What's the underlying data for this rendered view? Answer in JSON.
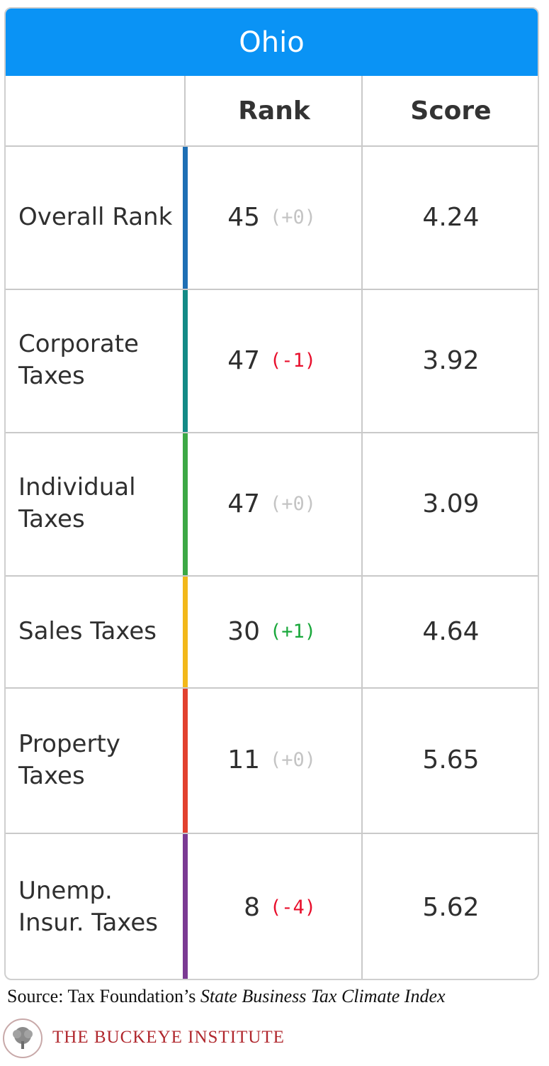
{
  "title": "Ohio",
  "columns": {
    "rank": "Rank",
    "score": "Score"
  },
  "colors": {
    "header": "#0a93f5",
    "neutral_change": "#c4c4c4",
    "negative_change": "#e8102d",
    "positive_change": "#1aa83c"
  },
  "rows": [
    {
      "label": "Overall Rank",
      "rank": "45",
      "change": "(+0)",
      "change_kind": "neutral",
      "score": "4.24",
      "bar_color": "#1e6fb5"
    },
    {
      "label": "Corporate Taxes",
      "rank": "47",
      "change": "(-1)",
      "change_kind": "negative",
      "score": "3.92",
      "bar_color": "#138a86"
    },
    {
      "label": "Individual Taxes",
      "rank": "47",
      "change": "(+0)",
      "change_kind": "neutral",
      "score": "3.09",
      "bar_color": "#3ca845"
    },
    {
      "label": "Sales Taxes",
      "rank": "30",
      "change": "(+1)",
      "change_kind": "positive",
      "score": "4.64",
      "bar_color": "#f2b81a"
    },
    {
      "label": "Property Taxes",
      "rank": "11",
      "change": "(+0)",
      "change_kind": "neutral",
      "score": "5.65",
      "bar_color": "#e2412f"
    },
    {
      "label": "Unemp. Insur. Taxes",
      "rank": "8",
      "change": "(-4)",
      "change_kind": "negative",
      "score": "5.62",
      "bar_color": "#7b3a93"
    }
  ],
  "source": {
    "prefix": "Source: Tax Foundation’s ",
    "publication": "State Business Tax Climate Index"
  },
  "footer": {
    "logo_icon": "tree-icon",
    "organization": "THE BUCKEYE INSTITUTE"
  },
  "chart_data": {
    "type": "table",
    "title": "Ohio",
    "columns": [
      "",
      "Rank",
      "Score"
    ],
    "categories": [
      "Overall Rank",
      "Corporate Taxes",
      "Individual Taxes",
      "Sales Taxes",
      "Property Taxes",
      "Unemp. Insur. Taxes"
    ],
    "series": [
      {
        "name": "Rank",
        "values": [
          45,
          47,
          47,
          30,
          11,
          8
        ]
      },
      {
        "name": "Score",
        "values": [
          4.24,
          3.92,
          3.09,
          4.64,
          5.65,
          5.62
        ]
      }
    ],
    "rank_change": [
      0,
      -1,
      0,
      1,
      0,
      -4
    ]
  }
}
